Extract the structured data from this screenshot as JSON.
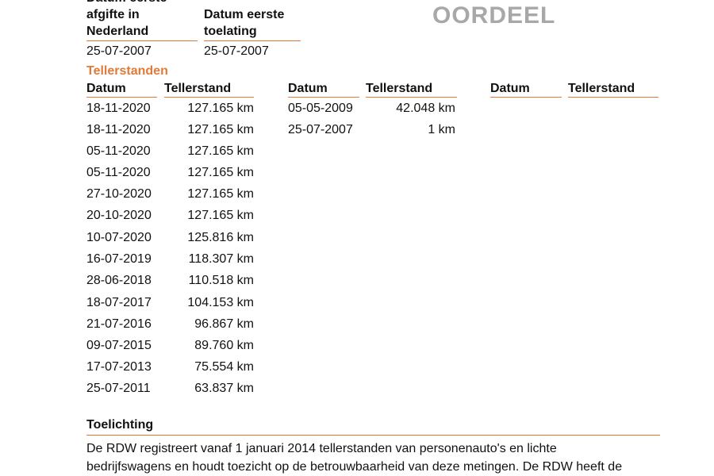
{
  "top": {
    "afgifte_label_line1": "Datum eerste",
    "afgifte_label_line2": "afgifte in",
    "afgifte_label_line3": "Nederland",
    "afgifte_value": "25-07-2007",
    "toelating_label_line1": "Datum eerste",
    "toelating_label_line2": "toelating",
    "toelating_value": "25-07-2007",
    "stamp": "OORDEEL"
  },
  "tellerstanden": {
    "title": "Tellerstanden",
    "col_datum": "Datum",
    "col_tellerstand": "Tellerstand",
    "column1": [
      {
        "date": "18-11-2020",
        "reading": "127.165 km"
      },
      {
        "date": "18-11-2020",
        "reading": "127.165 km"
      },
      {
        "date": "05-11-2020",
        "reading": "127.165 km"
      },
      {
        "date": "05-11-2020",
        "reading": "127.165 km"
      },
      {
        "date": "27-10-2020",
        "reading": "127.165 km"
      },
      {
        "date": "20-10-2020",
        "reading": "127.165 km"
      },
      {
        "date": "10-07-2020",
        "reading": "125.816 km"
      },
      {
        "date": "16-07-2019",
        "reading": "118.307 km"
      },
      {
        "date": "28-06-2018",
        "reading": "110.518 km"
      },
      {
        "date": "18-07-2017",
        "reading": "104.153 km"
      },
      {
        "date": "21-07-2016",
        "reading": "96.867 km"
      },
      {
        "date": "09-07-2015",
        "reading": "89.760 km"
      },
      {
        "date": "17-07-2013",
        "reading": "75.554 km"
      },
      {
        "date": "25-07-2011",
        "reading": "63.837 km"
      }
    ],
    "column2": [
      {
        "date": "05-05-2009",
        "reading": "42.048 km"
      },
      {
        "date": "25-07-2007",
        "reading": "1 km"
      }
    ],
    "column3": []
  },
  "toelichting": {
    "title": "Toelichting",
    "line1": "De RDW registreert vanaf 1 januari 2014 tellerstanden van personenauto's en lichte",
    "line2": "bedrijfswagens en houdt toezicht op de betrouwbaarheid van deze metingen. De RDW heeft de"
  }
}
